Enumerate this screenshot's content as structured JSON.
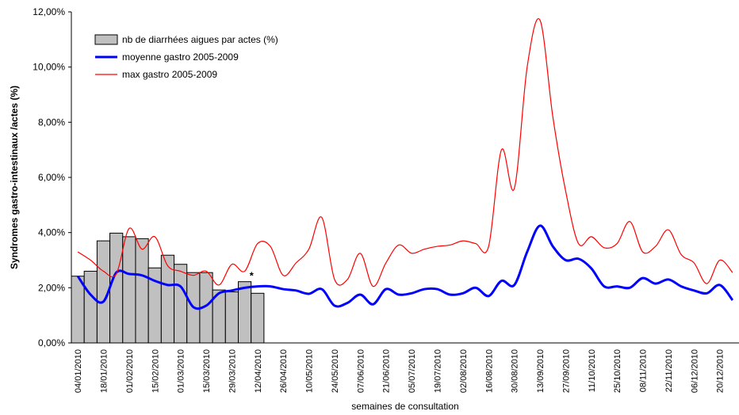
{
  "chart_data": {
    "type": "bar-line",
    "y_label": "Syndromes gastro-intestinaux /actes (%)",
    "x_label": "semaines de consultation",
    "annotation": "*",
    "categories": [
      "04/01/2010",
      null,
      "18/01/2010",
      null,
      "01/02/2010",
      null,
      "15/02/2010",
      null,
      "01/03/2010",
      null,
      "15/03/2010",
      null,
      "29/03/2010",
      null,
      "12/04/2010",
      null,
      "26/04/2010",
      null,
      "10/05/2010",
      null,
      "24/05/2010",
      null,
      "07/06/2010",
      null,
      "21/06/2010",
      null,
      "05/07/2010",
      null,
      "19/07/2010",
      null,
      "02/08/2010",
      null,
      "16/08/2010",
      null,
      "30/08/2010",
      null,
      "13/09/2010",
      null,
      "27/09/2010",
      null,
      "11/10/2010",
      null,
      "25/10/2010",
      null,
      "08/11/2010",
      null,
      "22/11/2010",
      null,
      "06/12/2010",
      null,
      "20/12/2010",
      null
    ],
    "series": [
      {
        "name": "nb de diarrhées aigues par actes (%)",
        "kind": "bar",
        "color": "#c0c0c0",
        "values": [
          2.42,
          2.6,
          3.7,
          3.98,
          3.85,
          3.78,
          2.72,
          3.18,
          2.85,
          2.55,
          2.55,
          1.92,
          1.85,
          2.22,
          1.8,
          null,
          null,
          null,
          null,
          null,
          null,
          null,
          null,
          null,
          null,
          null,
          null,
          null,
          null,
          null,
          null,
          null,
          null,
          null,
          null,
          null,
          null,
          null,
          null,
          null,
          null,
          null,
          null,
          null,
          null,
          null,
          null,
          null,
          null,
          null,
          null,
          null
        ]
      },
      {
        "name": "moyenne gastro 2005-2009",
        "kind": "line",
        "color": "#0000ff",
        "values": [
          2.42,
          1.75,
          1.5,
          2.55,
          2.5,
          2.45,
          2.25,
          2.1,
          2.05,
          1.3,
          1.35,
          1.8,
          1.9,
          2.0,
          2.05,
          2.05,
          1.95,
          1.9,
          1.78,
          1.95,
          1.35,
          1.45,
          1.75,
          1.4,
          1.95,
          1.75,
          1.8,
          1.95,
          1.95,
          1.75,
          1.8,
          2.0,
          1.7,
          2.25,
          2.1,
          3.3,
          4.25,
          3.5,
          3.0,
          3.05,
          2.7,
          2.05,
          2.05,
          2.0,
          2.35,
          2.15,
          2.3,
          2.05,
          1.9,
          1.8,
          2.1,
          1.55
        ]
      },
      {
        "name": "max gastro 2005-2009",
        "kind": "line",
        "color": "#ff0000",
        "values": [
          3.3,
          3.0,
          2.6,
          2.5,
          4.15,
          3.4,
          3.85,
          2.8,
          2.6,
          2.45,
          2.6,
          2.1,
          2.85,
          2.6,
          3.6,
          3.5,
          2.45,
          2.9,
          3.4,
          4.55,
          2.3,
          2.3,
          3.25,
          2.05,
          2.9,
          3.55,
          3.25,
          3.4,
          3.5,
          3.55,
          3.7,
          3.6,
          3.5,
          7.0,
          5.6,
          10.0,
          11.7,
          8.2,
          5.5,
          3.6,
          3.85,
          3.45,
          3.6,
          4.4,
          3.3,
          3.5,
          4.1,
          3.2,
          2.9,
          2.15,
          3.0,
          2.55
        ]
      }
    ],
    "ylim": [
      0,
      12
    ],
    "yticks": [
      {
        "value": 0,
        "label": "0,00%"
      },
      {
        "value": 2,
        "label": "2,00%"
      },
      {
        "value": 4,
        "label": "4,00%"
      },
      {
        "value": 6,
        "label": "6,00%"
      },
      {
        "value": 8,
        "label": "8,00%"
      },
      {
        "value": 10,
        "label": "10,00%"
      },
      {
        "value": 12,
        "label": "12,00%"
      }
    ],
    "annotation_at": 14,
    "legend": "top-left"
  }
}
